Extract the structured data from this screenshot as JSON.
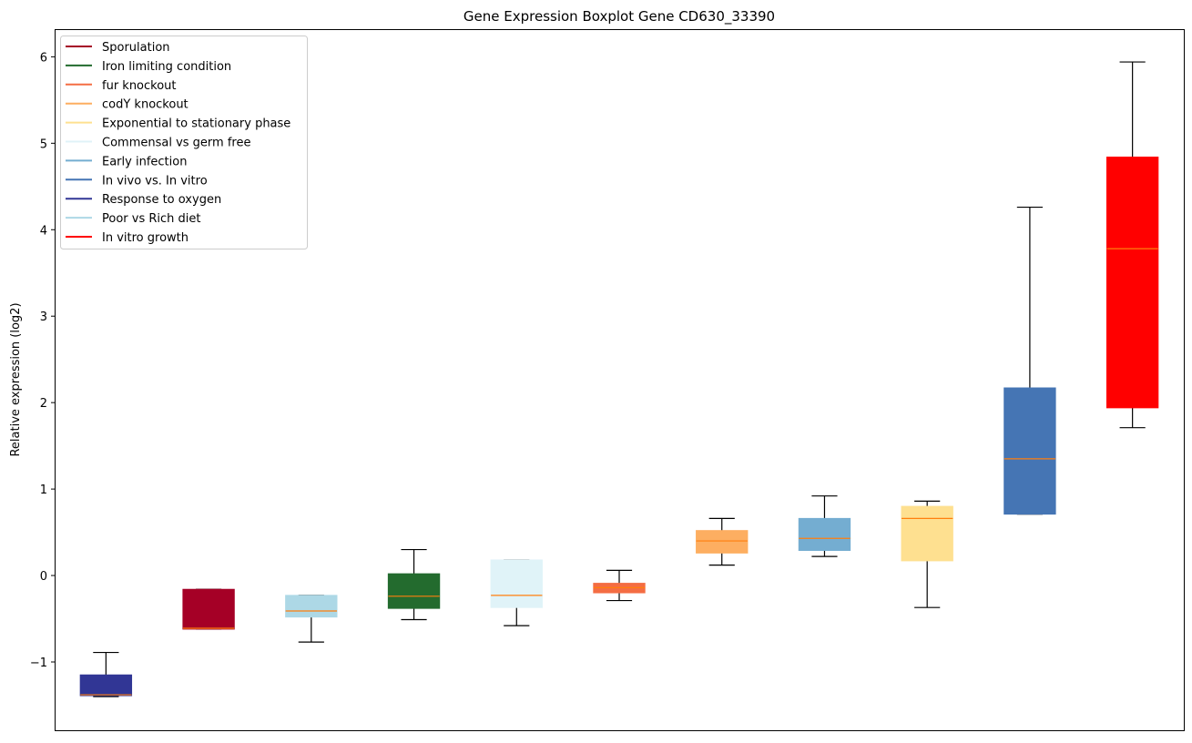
{
  "chart_data": {
    "type": "box",
    "title": "Gene Expression Boxplot Gene CD630_33390",
    "xlabel": "",
    "ylabel": "Relative expression (log2)",
    "ylim": [
      -1.79,
      6.32
    ],
    "yticks": [
      -1,
      0,
      1,
      2,
      3,
      4,
      5,
      6
    ],
    "ytick_labels": [
      "−1",
      "0",
      "1",
      "2",
      "3",
      "4",
      "5",
      "6"
    ],
    "grid": false,
    "legend_position": "top-left",
    "median_color": "#ff7f0e",
    "boxes": [
      {
        "name": "Response to oxygen",
        "color": "#313695",
        "whislo": -1.4,
        "q1": -1.39,
        "med": -1.38,
        "q3": -1.15,
        "whishi": -0.89
      },
      {
        "name": "Sporulation",
        "color": "#a50026",
        "whislo": -0.62,
        "q1": -0.62,
        "med": -0.61,
        "q3": -0.16,
        "whishi": -0.16
      },
      {
        "name": "Poor vs Rich diet",
        "color": "#add8e6",
        "whislo": -0.77,
        "q1": -0.48,
        "med": -0.41,
        "q3": -0.23,
        "whishi": -0.23
      },
      {
        "name": "Iron limiting condition",
        "color": "#236b2e",
        "whislo": -0.51,
        "q1": -0.38,
        "med": -0.24,
        "q3": 0.02,
        "whishi": 0.3
      },
      {
        "name": "Commensal vs germ free",
        "color": "#e0f3f8",
        "whislo": -0.58,
        "q1": -0.37,
        "med": -0.23,
        "q3": 0.18,
        "whishi": 0.18
      },
      {
        "name": "fur knockout",
        "color": "#f46d43",
        "whislo": -0.29,
        "q1": -0.2,
        "med": -0.14,
        "q3": -0.09,
        "whishi": 0.06
      },
      {
        "name": "codY knockout",
        "color": "#fdae61",
        "whislo": 0.12,
        "q1": 0.26,
        "med": 0.4,
        "q3": 0.52,
        "whishi": 0.66
      },
      {
        "name": "Early infection",
        "color": "#74add1",
        "whislo": 0.22,
        "q1": 0.29,
        "med": 0.43,
        "q3": 0.66,
        "whishi": 0.92
      },
      {
        "name": "Exponential to stationary phase",
        "color": "#fee090",
        "whislo": -0.37,
        "q1": 0.17,
        "med": 0.66,
        "q3": 0.8,
        "whishi": 0.86
      },
      {
        "name": "In vivo vs. In vitro",
        "color": "#4575b4",
        "whislo": 0.71,
        "q1": 0.71,
        "med": 1.35,
        "q3": 2.17,
        "whishi": 4.26
      },
      {
        "name": "In vitro growth",
        "color": "#ff0000",
        "whislo": 1.71,
        "q1": 1.94,
        "med": 3.78,
        "q3": 4.84,
        "whishi": 5.94
      }
    ],
    "legend": [
      {
        "label": "Sporulation",
        "color": "#a50026"
      },
      {
        "label": "Iron limiting condition",
        "color": "#236b2e"
      },
      {
        "label": "fur knockout",
        "color": "#f46d43"
      },
      {
        "label": "codY knockout",
        "color": "#fdae61"
      },
      {
        "label": "Exponential to stationary phase",
        "color": "#fee090"
      },
      {
        "label": "Commensal vs germ free",
        "color": "#e0f3f8"
      },
      {
        "label": "Early infection",
        "color": "#74add1"
      },
      {
        "label": "In vivo vs. In vitro",
        "color": "#4575b4"
      },
      {
        "label": "Response to oxygen",
        "color": "#313695"
      },
      {
        "label": "Poor vs Rich diet",
        "color": "#add8e6"
      },
      {
        "label": "In vitro growth",
        "color": "#ff0000"
      }
    ]
  }
}
